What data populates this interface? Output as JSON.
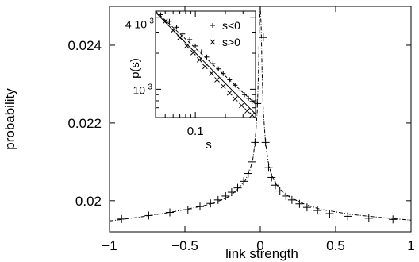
{
  "chart_data": [
    {
      "type": "scatter",
      "title": "",
      "xlabel": "link strength",
      "ylabel": "probability",
      "xlim": [
        -1,
        1
      ],
      "ylim": [
        0.0192,
        0.025
      ],
      "x_ticks": [
        -1,
        -0.5,
        0,
        0.5,
        1
      ],
      "x_tick_labels": [
        "−1",
        "−0.5",
        "0",
        "0.5",
        "1"
      ],
      "y_ticks": [
        0.02,
        0.022,
        0.024
      ],
      "y_tick_labels": [
        "0.02",
        "0.022",
        "0.024"
      ],
      "grid": false,
      "marker": "+",
      "series": [
        {
          "x": [
            -0.92,
            -0.74,
            -0.6,
            -0.48,
            -0.4,
            -0.33,
            -0.28,
            -0.23,
            -0.19,
            -0.15,
            -0.11,
            -0.08,
            -0.055,
            -0.035,
            -0.02,
            0.02,
            0.035,
            0.055,
            0.075,
            0.1,
            0.13,
            0.17,
            0.21,
            0.26,
            0.31,
            0.38,
            0.46,
            0.58,
            0.72,
            0.88
          ],
          "y": [
            0.01953,
            0.01962,
            0.0197,
            0.01977,
            0.01985,
            0.01993,
            0.02002,
            0.02012,
            0.02022,
            0.02033,
            0.0205,
            0.0207,
            0.021,
            0.0215,
            0.0225,
            0.0242,
            0.0215,
            0.02085,
            0.0206,
            0.0204,
            0.02025,
            0.02012,
            0.02002,
            0.01992,
            0.01983,
            0.01975,
            0.01967,
            0.0196,
            0.01955,
            0.01952
          ]
        }
      ],
      "fit_curve": {
        "x": [
          -1.0,
          -0.8,
          -0.6,
          -0.4,
          -0.3,
          -0.2,
          -0.15,
          -0.1,
          -0.07,
          -0.05,
          -0.035,
          -0.02,
          -0.012,
          -0.006,
          0.0,
          0.006,
          0.012,
          0.02,
          0.035,
          0.05,
          0.07,
          0.1,
          0.15,
          0.2,
          0.3,
          0.4,
          0.6,
          0.8,
          1.0
        ],
        "y": [
          0.01948,
          0.01958,
          0.0197,
          0.01985,
          0.01995,
          0.02012,
          0.0203,
          0.02052,
          0.02078,
          0.02105,
          0.0215,
          0.0223,
          0.0233,
          0.0245,
          0.025,
          0.0245,
          0.0233,
          0.0223,
          0.0215,
          0.02105,
          0.02072,
          0.02045,
          0.02022,
          0.02008,
          0.0199,
          0.01978,
          0.01965,
          0.01957,
          0.0195
        ]
      }
    },
    {
      "type": "scatter",
      "title": "",
      "xlabel": "s",
      "ylabel": "p(s)",
      "log_x": true,
      "log_y": true,
      "xlim": [
        0.04,
        0.4
      ],
      "ylim": [
        0.00058,
        0.0045
      ],
      "x_tick_labels": [
        "0.1"
      ],
      "y_tick_labels": [
        "4 10⁻³",
        "10⁻³"
      ],
      "legend_position": "top-right",
      "series": [
        {
          "name": "s<0",
          "marker": "+",
          "x": [
            0.045,
            0.055,
            0.065,
            0.075,
            0.088,
            0.1,
            0.115,
            0.13,
            0.15,
            0.17,
            0.19,
            0.22,
            0.25,
            0.28,
            0.31,
            0.34,
            0.37
          ],
          "y": [
            0.0042,
            0.0037,
            0.0033,
            0.0029,
            0.0026,
            0.0023,
            0.00205,
            0.00186,
            0.00164,
            0.00148,
            0.00135,
            0.0012,
            0.00108,
            0.00097,
            0.0009,
            0.00084,
            0.00079
          ]
        },
        {
          "name": "s>0",
          "marker": "x",
          "x": [
            0.05,
            0.06,
            0.07,
            0.082,
            0.095,
            0.11,
            0.125,
            0.145,
            0.165,
            0.19,
            0.22,
            0.25,
            0.29,
            0.33,
            0.37
          ],
          "y": [
            0.0037,
            0.0031,
            0.0027,
            0.0023,
            0.00202,
            0.00176,
            0.00155,
            0.00136,
            0.0012,
            0.00106,
            0.00093,
            0.00083,
            0.00073,
            0.00066,
            0.00061
          ]
        }
      ],
      "fit_lines": [
        {
          "x": [
            0.04,
            0.4
          ],
          "y": [
            0.0045,
            0.00075
          ]
        },
        {
          "x": [
            0.04,
            0.4
          ],
          "y": [
            0.0044,
            0.00062
          ]
        }
      ]
    }
  ]
}
